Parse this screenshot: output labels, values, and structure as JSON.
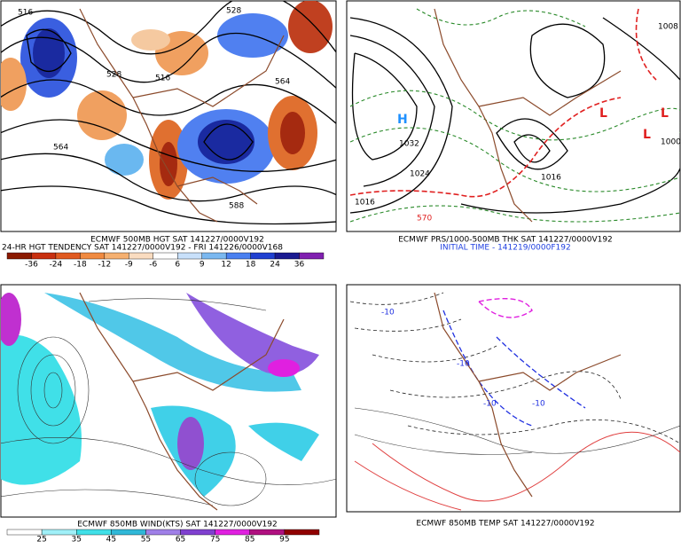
{
  "panels": [
    {
      "caption": [
        "ECMWF 500MB HGT SAT 141227/0000V192",
        "24-HR HGT TENDENCY SAT 141227/0000V192 - FRI 141226/0000V168"
      ],
      "colorbar": [
        -36,
        -24,
        -18,
        -12,
        -9,
        -6,
        6,
        9,
        12,
        18,
        24,
        36
      ],
      "contour_labels": [
        "516",
        "528",
        "516",
        "564",
        "564",
        "528",
        "588"
      ]
    },
    {
      "caption": [
        "ECMWF PRS/1000-500MB THK SAT 141227/0000V192",
        "INITIAL TIME - 141219/0000F192"
      ],
      "contour_labels": [
        "H",
        "1032",
        "1024",
        "1016",
        "L",
        "L",
        "L",
        "570",
        "1000",
        "1008",
        "1016"
      ]
    },
    {
      "caption": [
        "ECMWF 850MB WIND(KTS) SAT 141227/0000V192"
      ],
      "colorbar": [
        25,
        35,
        45,
        55,
        65,
        75,
        85,
        95
      ]
    },
    {
      "caption": [
        "ECMWF 850MB TEMP SAT 141227/0000V192"
      ],
      "contour_labels": [
        "-10",
        "-10",
        "-10",
        "-10"
      ]
    }
  ]
}
